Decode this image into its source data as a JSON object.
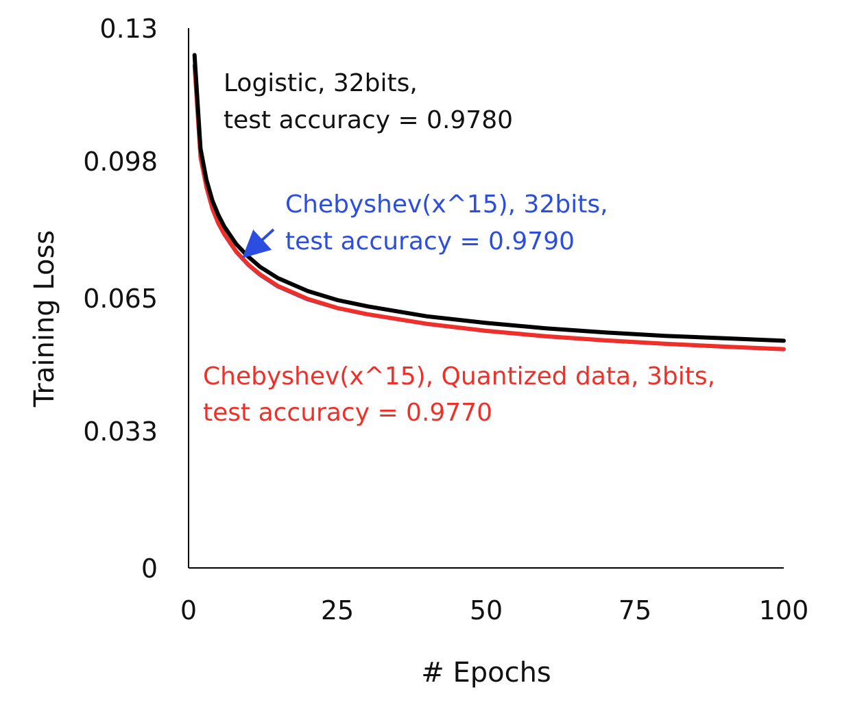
{
  "chart_data": {
    "type": "line",
    "title": "",
    "xlabel": "# Epochs",
    "ylabel": "Training Loss",
    "xlim": [
      0,
      100
    ],
    "ylim": [
      0,
      0.13
    ],
    "x_ticks": [
      "0",
      "25",
      "50",
      "75",
      "100"
    ],
    "y_ticks": [
      "0",
      "0.033",
      "0.065",
      "0.098",
      "0.13"
    ],
    "grid": false,
    "legend": "none",
    "x": [
      1,
      2,
      3,
      4,
      5,
      6,
      8,
      10,
      12,
      15,
      20,
      25,
      30,
      40,
      50,
      60,
      70,
      80,
      90,
      100
    ],
    "series": [
      {
        "color": "#000000",
        "values": [
          0.1235,
          0.101,
          0.0935,
          0.0885,
          0.085,
          0.0822,
          0.078,
          0.075,
          0.0725,
          0.0698,
          0.0667,
          0.0645,
          0.063,
          0.0606,
          0.059,
          0.0577,
          0.0567,
          0.0559,
          0.0553,
          0.0547
        ]
      },
      {
        "color": "#2b4de0",
        "values": [
          0.1205,
          0.0985,
          0.0915,
          0.0863,
          0.0828,
          0.0802,
          0.076,
          0.0729,
          0.0705,
          0.0677,
          0.0646,
          0.0625,
          0.061,
          0.0587,
          0.057,
          0.0557,
          0.0547,
          0.0539,
          0.0532,
          0.0526
        ]
      },
      {
        "color": "#f03028",
        "values": [
          0.121,
          0.099,
          0.0918,
          0.0866,
          0.083,
          0.0804,
          0.0762,
          0.0731,
          0.0707,
          0.0679,
          0.0648,
          0.0626,
          0.0611,
          0.0588,
          0.0571,
          0.0558,
          0.0548,
          0.054,
          0.0533,
          0.0527
        ]
      }
    ],
    "annotations": [
      {
        "lines": [
          "Logistic, 32bits,",
          "test accuracy = 0.9780"
        ],
        "color": "#111111"
      },
      {
        "lines": [
          "Chebyshev(x^15), 32bits,",
          "test accuracy = 0.9790"
        ],
        "color": "#2b4de0",
        "arrow_to": {
          "x": 9,
          "y": 0.0745
        }
      },
      {
        "lines": [
          "Chebyshev(x^15), Quantized data, 3bits,",
          "test accuracy = 0.9770"
        ],
        "color": "#f03028"
      }
    ]
  }
}
